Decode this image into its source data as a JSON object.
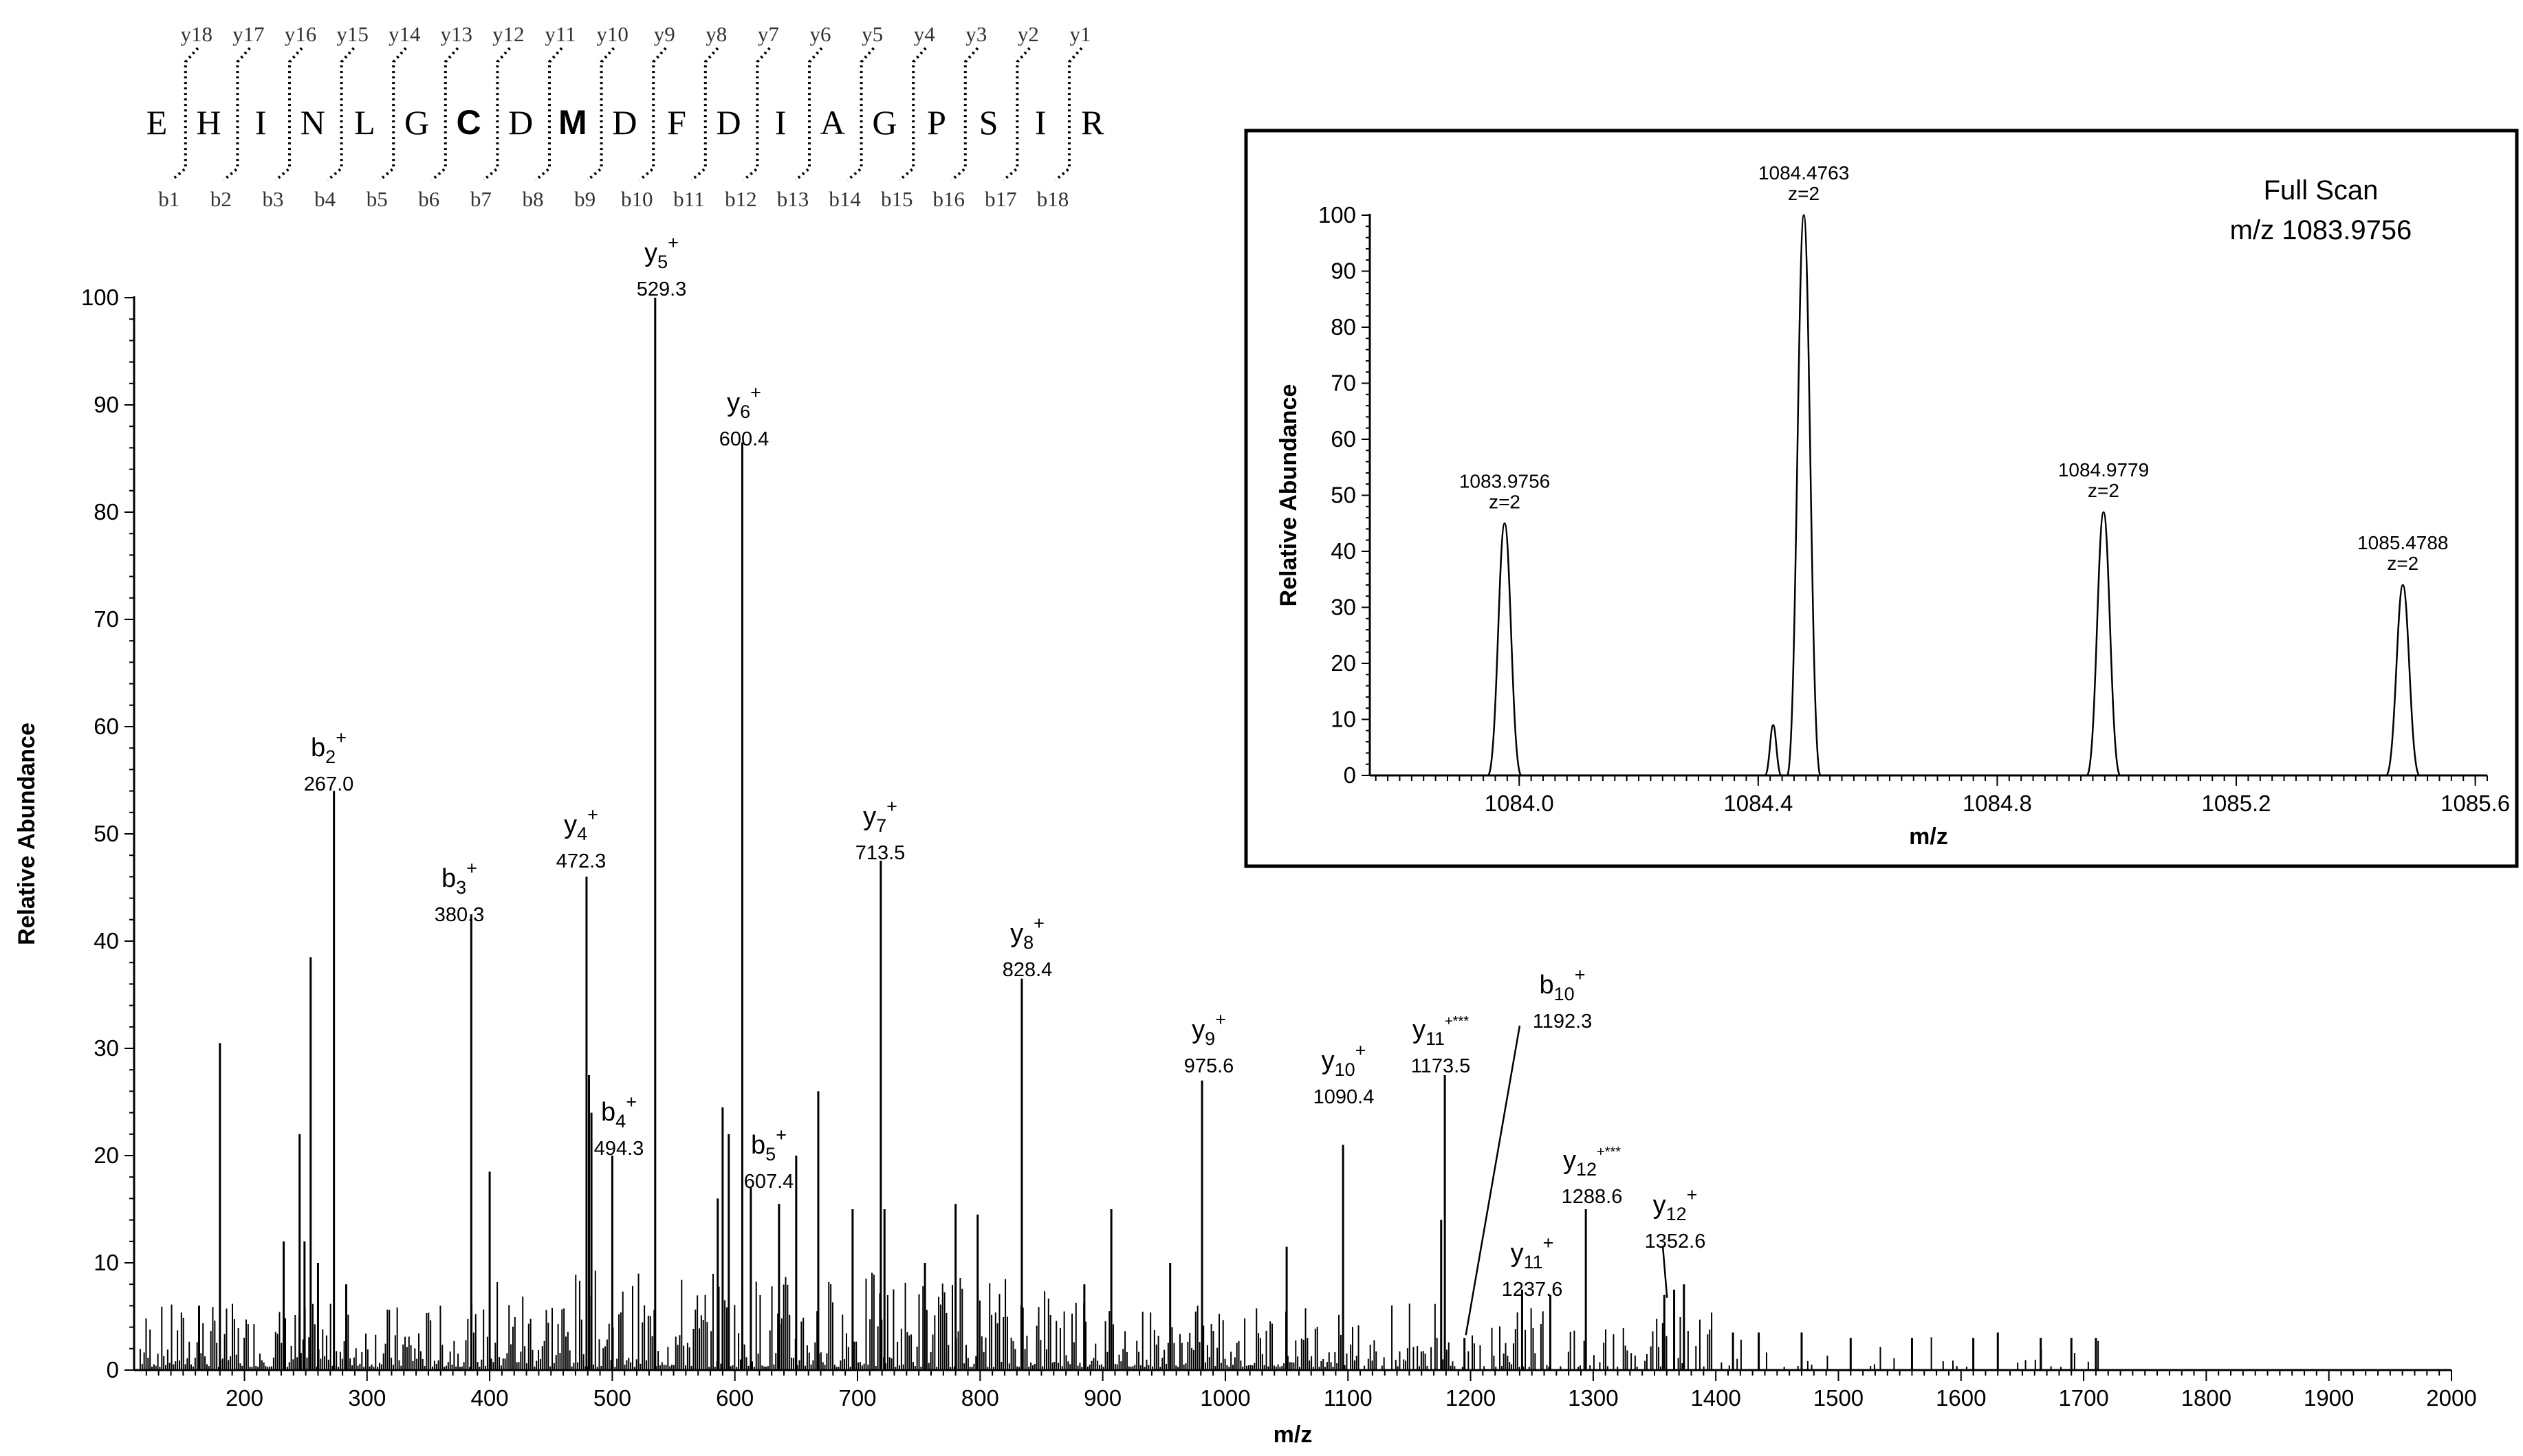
{
  "sequence": {
    "residues": [
      "E",
      "H",
      "I",
      "N",
      "L",
      "G",
      "C",
      "D",
      "M",
      "D",
      "F",
      "D",
      "I",
      "A",
      "G",
      "P",
      "S",
      "I",
      "R"
    ],
    "bold_indices": [
      6,
      8
    ],
    "y_labels": [
      "y18",
      "y17",
      "y16",
      "y15",
      "y14",
      "y13",
      "y12",
      "y11",
      "y10",
      "y9",
      "y8",
      "y7",
      "y6",
      "y5",
      "y4",
      "y3",
      "y2",
      "y1"
    ],
    "b_labels": [
      "b1",
      "b2",
      "b3",
      "b4",
      "b5",
      "b6",
      "b7",
      "b8",
      "b9",
      "b10",
      "b11",
      "b12",
      "b13",
      "b14",
      "b15",
      "b16",
      "b17",
      "b18"
    ]
  },
  "chart_data": [
    {
      "type": "bar",
      "subtype": "mass-spectrum-stick",
      "xlabel": "m/z",
      "ylabel": "Relative Abundance",
      "xlim": [
        110,
        2000
      ],
      "ylim": [
        0,
        100
      ],
      "x_ticks": [
        200,
        300,
        400,
        500,
        600,
        700,
        800,
        900,
        1000,
        1100,
        1200,
        1300,
        1400,
        1500,
        1600,
        1700,
        1800,
        1900,
        2000
      ],
      "y_ticks": [
        0,
        10,
        20,
        30,
        40,
        50,
        60,
        70,
        80,
        90,
        100
      ],
      "annotations": [
        {
          "ion": "b",
          "sub": "2",
          "sup": "+",
          "mz_label": "267.0",
          "mz": 273,
          "intensity": 54
        },
        {
          "ion": "b",
          "sub": "3",
          "sup": "+",
          "mz_label": "380.3",
          "mz": 385,
          "intensity": 42.5
        },
        {
          "ion": "y",
          "sub": "4",
          "sup": "+",
          "mz_label": "472.3",
          "mz": 479,
          "intensity": 46
        },
        {
          "ion": "b",
          "sub": "4",
          "sup": "+",
          "mz_label": "494.3",
          "mz": 500,
          "intensity": 20
        },
        {
          "ion": "y",
          "sub": "5",
          "sup": "+",
          "mz_label": "529.3",
          "mz": 535,
          "intensity": 100
        },
        {
          "ion": "y",
          "sub": "6",
          "sup": "+",
          "mz_label": "600.4",
          "mz": 606,
          "intensity": 86.5
        },
        {
          "ion": "b",
          "sub": "5",
          "sup": "+",
          "mz_label": "607.4",
          "mz": 613,
          "intensity": 17
        },
        {
          "ion": "y",
          "sub": "7",
          "sup": "+",
          "mz_label": "713.5",
          "mz": 719,
          "intensity": 47.5
        },
        {
          "ion": "y",
          "sub": "8",
          "sup": "+",
          "mz_label": "828.4",
          "mz": 834,
          "intensity": 36.5
        },
        {
          "ion": "y",
          "sub": "9",
          "sup": "+",
          "mz_label": "975.6",
          "mz": 981,
          "intensity": 27
        },
        {
          "ion": "y",
          "sub": "10",
          "sup": "+",
          "mz_label": "1090.4",
          "mz": 1096,
          "intensity": 21
        },
        {
          "ion": "y",
          "sub": "11",
          "sup": "+***",
          "mz_label": "1173.5",
          "mz": 1179,
          "intensity": 27.5
        },
        {
          "ion": "b",
          "sub": "10",
          "sup": "+",
          "mz_label": "1192.3",
          "mz": 1195,
          "intensity": 3
        },
        {
          "ion": "y",
          "sub": "11",
          "sup": "+",
          "mz_label": "1237.6",
          "mz": 1242,
          "intensity": 7.5
        },
        {
          "ion": "y",
          "sub": "12",
          "sup": "+***",
          "mz_label": "1288.6",
          "mz": 1294,
          "intensity": 15
        },
        {
          "ion": "y",
          "sub": "12",
          "sup": "+",
          "mz_label": "1352.6",
          "mz": 1358,
          "intensity": 7
        }
      ],
      "other_peaks": [
        {
          "mz": 180,
          "intensity": 30.5
        },
        {
          "mz": 254,
          "intensity": 38.5
        },
        {
          "mz": 245,
          "intensity": 22
        },
        {
          "mz": 232,
          "intensity": 12
        },
        {
          "mz": 249,
          "intensity": 12
        },
        {
          "mz": 260,
          "intensity": 10
        },
        {
          "mz": 283,
          "intensity": 8
        },
        {
          "mz": 163,
          "intensity": 6
        },
        {
          "mz": 400,
          "intensity": 18.5
        },
        {
          "mz": 481,
          "intensity": 27.5
        },
        {
          "mz": 483,
          "intensity": 24
        },
        {
          "mz": 590,
          "intensity": 24.5
        },
        {
          "mz": 586,
          "intensity": 16
        },
        {
          "mz": 595,
          "intensity": 22
        },
        {
          "mz": 636,
          "intensity": 15.5
        },
        {
          "mz": 650,
          "intensity": 20
        },
        {
          "mz": 668,
          "intensity": 26
        },
        {
          "mz": 696,
          "intensity": 15
        },
        {
          "mz": 722,
          "intensity": 15
        },
        {
          "mz": 755,
          "intensity": 10
        },
        {
          "mz": 780,
          "intensity": 15.5
        },
        {
          "mz": 798,
          "intensity": 14.5
        },
        {
          "mz": 907,
          "intensity": 15
        },
        {
          "mz": 885,
          "intensity": 8
        },
        {
          "mz": 1050,
          "intensity": 11.5
        },
        {
          "mz": 955,
          "intensity": 10
        },
        {
          "mz": 1176,
          "intensity": 14
        },
        {
          "mz": 1265,
          "intensity": 7
        },
        {
          "mz": 1366,
          "intensity": 7.5
        },
        {
          "mz": 1374,
          "intensity": 8
        },
        {
          "mz": 1414,
          "intensity": 3.5
        },
        {
          "mz": 1435,
          "intensity": 3.5
        },
        {
          "mz": 1470,
          "intensity": 3.5
        },
        {
          "mz": 1510,
          "intensity": 3
        },
        {
          "mz": 1560,
          "intensity": 3
        },
        {
          "mz": 1610,
          "intensity": 3
        },
        {
          "mz": 1630,
          "intensity": 3.5
        },
        {
          "mz": 1665,
          "intensity": 3
        },
        {
          "mz": 1690,
          "intensity": 3
        },
        {
          "mz": 1710,
          "intensity": 3
        }
      ]
    },
    {
      "type": "line",
      "title_lines": [
        "Full Scan",
        "m/z 1083.9756"
      ],
      "xlabel": "m/z",
      "ylabel": "Relative Abundance",
      "xlim": [
        1083.75,
        1085.62
      ],
      "ylim": [
        0,
        100
      ],
      "x_ticks": [
        "1084.0",
        "1084.4",
        "1084.8",
        "1085.2",
        "1085.6"
      ],
      "x_tick_values": [
        1084.0,
        1084.4,
        1084.8,
        1085.2,
        1085.6
      ],
      "y_ticks": [
        0,
        10,
        20,
        30,
        40,
        50,
        60,
        70,
        80,
        90,
        100
      ],
      "peaks": [
        {
          "mz": 1083.9756,
          "label": "1083.9756",
          "charge": "z=2",
          "intensity": 45
        },
        {
          "mz": 1084.4763,
          "label": "1084.4763",
          "charge": "z=2",
          "intensity": 100
        },
        {
          "mz": 1084.9779,
          "label": "1084.9779",
          "charge": "z=2",
          "intensity": 47
        },
        {
          "mz": 1085.4788,
          "label": "1085.4788",
          "charge": "z=2",
          "intensity": 34
        },
        {
          "mz": 1084.425,
          "label": "",
          "charge": "",
          "intensity": 9
        }
      ]
    }
  ]
}
